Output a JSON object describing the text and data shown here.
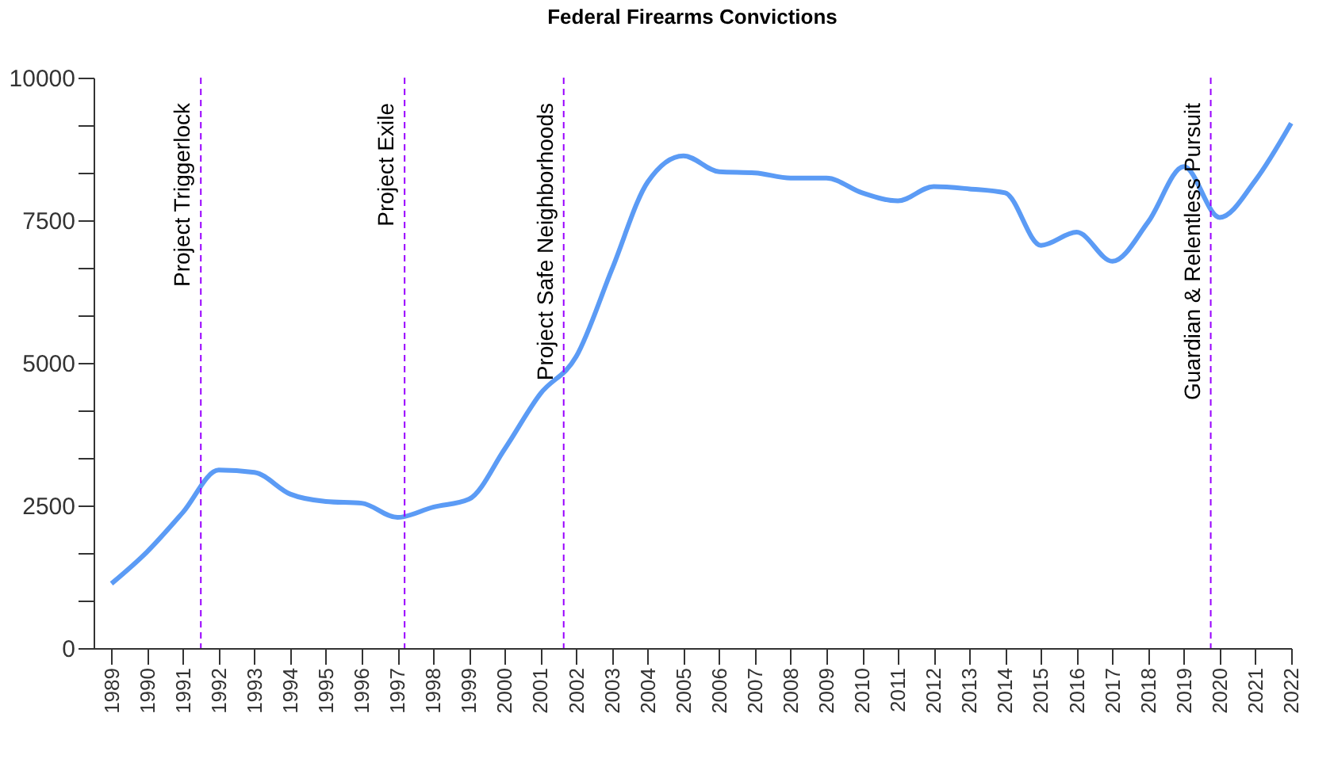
{
  "chart_data": {
    "type": "line",
    "title": "Federal Firearms Convictions",
    "x": [
      1989,
      1990,
      1991,
      1992,
      1993,
      1994,
      1995,
      1996,
      1997,
      1998,
      1999,
      2000,
      2001,
      2002,
      2003,
      2004,
      2005,
      2006,
      2007,
      2008,
      2009,
      2010,
      2011,
      2012,
      2013,
      2014,
      2015,
      2016,
      2017,
      2018,
      2019,
      2020,
      2021,
      2022
    ],
    "series": [
      {
        "color": "#5b9bf5",
        "values": [
          1130,
          1690,
          2380,
          3120,
          3080,
          2700,
          2570,
          2540,
          2290,
          2470,
          2610,
          3490,
          4460,
          5110,
          6640,
          8170,
          8630,
          8350,
          8330,
          8240,
          8240,
          7980,
          7840,
          8090,
          8050,
          7980,
          7060,
          7290,
          6780,
          7470,
          8440,
          7550,
          8200,
          9200
        ]
      }
    ],
    "xlim": [
      1988.5,
      2022
    ],
    "xticks": [
      1989,
      1990,
      1991,
      1992,
      1993,
      1994,
      1995,
      1996,
      1997,
      1998,
      1999,
      2000,
      2001,
      2002,
      2003,
      2004,
      2005,
      2006,
      2007,
      2008,
      2009,
      2010,
      2011,
      2012,
      2013,
      2014,
      2015,
      2016,
      2017,
      2018,
      2019,
      2020,
      2021,
      2022
    ],
    "ylim": [
      0,
      10000
    ],
    "yticks": [
      0,
      {
        "value": 833.33,
        "label": null
      },
      {
        "value": 1666.67,
        "label": null
      },
      2500,
      {
        "value": 3333.33,
        "label": null
      },
      {
        "value": 4166.67,
        "label": null
      },
      5000,
      {
        "value": 5833.33,
        "label": null
      },
      {
        "value": 6666.67,
        "label": null
      },
      7500,
      {
        "value": 8333.33,
        "label": null
      },
      {
        "value": 9166.67,
        "label": null
      },
      10000
    ],
    "ref_lines": [
      {
        "axis": "x",
        "value": 1991.5,
        "label": "Project Triggerlock",
        "color": "#9900ff",
        "line_style": "dashed"
      },
      {
        "axis": "x",
        "value": 1997.2,
        "label": "Project Exile",
        "color": "#9900ff",
        "line_style": "dashed"
      },
      {
        "axis": "x",
        "value": 2001.65,
        "label": "Project Safe Neighborhoods",
        "color": "#9900ff",
        "line_style": "dashed"
      },
      {
        "axis": "x",
        "value": 2019.75,
        "label": "Guardian & Relentless Pursuit",
        "color": "#9900ff",
        "line_style": "dashed"
      }
    ],
    "grid": false,
    "marker": "none",
    "line_style": "solid"
  }
}
